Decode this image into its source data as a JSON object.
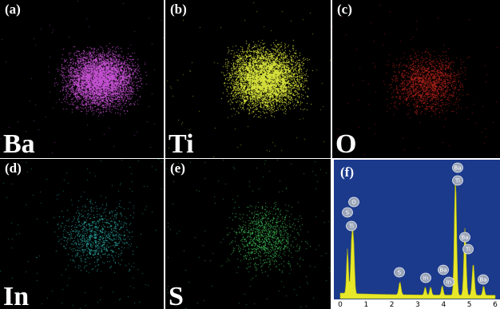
{
  "panels": [
    {
      "id": "a",
      "label": "(a)",
      "element": "Ba",
      "color": "#c24fd0"
    },
    {
      "id": "b",
      "label": "(b)",
      "element": "Ti",
      "color": "#d6e23a"
    },
    {
      "id": "c",
      "label": "(c)",
      "element": "O",
      "color": "#c8261c"
    },
    {
      "id": "d",
      "label": "(d)",
      "element": "In",
      "color": "#2bb6b0"
    },
    {
      "id": "e",
      "label": "(e)",
      "element": "S",
      "color": "#3fc85a"
    }
  ],
  "spectrum": {
    "label": "(f)",
    "fill_color": "#e8e82a",
    "background_color": "#1b3a8c",
    "x_ticks": [
      "0",
      "1",
      "2",
      "3",
      "4",
      "5",
      "6"
    ],
    "peak_labels": [
      "Ba",
      "Ti",
      "S",
      "O",
      "Ti",
      "S",
      "In",
      "Ba",
      "In",
      "Ba",
      "Ti",
      "Ba"
    ]
  }
}
